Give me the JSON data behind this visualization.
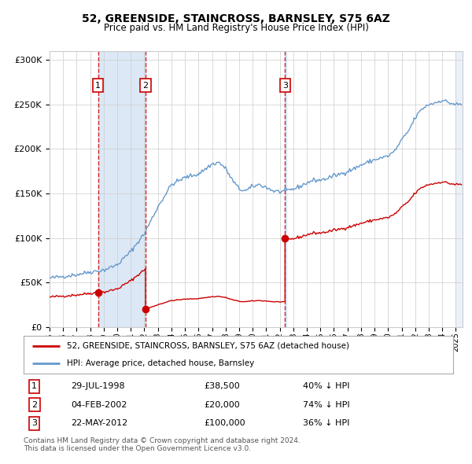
{
  "title": "52, GREENSIDE, STAINCROSS, BARNSLEY, S75 6AZ",
  "subtitle": "Price paid vs. HM Land Registry's House Price Index (HPI)",
  "transactions": [
    {
      "num": 1,
      "date": "1998-07-29",
      "price": 38500,
      "x_year": 1998.58
    },
    {
      "num": 2,
      "date": "2002-02-04",
      "price": 20000,
      "x_year": 2002.09
    },
    {
      "num": 3,
      "date": "2012-05-22",
      "price": 100000,
      "x_year": 2012.39
    }
  ],
  "legend_entries": [
    {
      "label": "52, GREENSIDE, STAINCROSS, BARNSLEY, S75 6AZ (detached house)",
      "color": "#cc0000"
    },
    {
      "label": "HPI: Average price, detached house, Barnsley",
      "color": "#6699cc"
    }
  ],
  "table_rows": [
    {
      "num": 1,
      "date": "29-JUL-1998",
      "price": "£38,500",
      "note": "40% ↓ HPI"
    },
    {
      "num": 2,
      "date": "04-FEB-2002",
      "price": "£20,000",
      "note": "74% ↓ HPI"
    },
    {
      "num": 3,
      "date": "22-MAY-2012",
      "price": "£100,000",
      "note": "36% ↓ HPI"
    }
  ],
  "footnote1": "Contains HM Land Registry data © Crown copyright and database right 2024.",
  "footnote2": "This data is licensed under the Open Government Licence v3.0.",
  "ylim": [
    0,
    310000
  ],
  "xlim_start": 1995.0,
  "xlim_end": 2025.5,
  "hpi_color": "#6699cc",
  "price_color": "#cc0000",
  "plot_bg": "#ffffff",
  "grid_color": "#cccccc",
  "shade_color": "#dce8f5",
  "dashed_color": "#cc0000",
  "hpi_anchors": [
    [
      1995.0,
      55000
    ],
    [
      1996.0,
      57000
    ],
    [
      1997.0,
      59000
    ],
    [
      1998.0,
      62000
    ],
    [
      1999.0,
      64000
    ],
    [
      2000.0,
      70000
    ],
    [
      2001.0,
      85000
    ],
    [
      2002.0,
      105000
    ],
    [
      2003.0,
      135000
    ],
    [
      2004.0,
      160000
    ],
    [
      2005.0,
      168000
    ],
    [
      2006.0,
      172000
    ],
    [
      2007.0,
      183000
    ],
    [
      2007.5,
      185000
    ],
    [
      2008.0,
      178000
    ],
    [
      2008.5,
      165000
    ],
    [
      2009.0,
      155000
    ],
    [
      2009.5,
      153000
    ],
    [
      2010.0,
      158000
    ],
    [
      2010.5,
      160000
    ],
    [
      2011.0,
      157000
    ],
    [
      2011.5,
      153000
    ],
    [
      2012.0,
      152000
    ],
    [
      2012.5,
      153000
    ],
    [
      2013.0,
      155000
    ],
    [
      2013.5,
      158000
    ],
    [
      2014.0,
      162000
    ],
    [
      2014.5,
      165000
    ],
    [
      2015.0,
      165000
    ],
    [
      2015.5,
      167000
    ],
    [
      2016.0,
      170000
    ],
    [
      2016.5,
      172000
    ],
    [
      2017.0,
      175000
    ],
    [
      2017.5,
      178000
    ],
    [
      2018.0,
      182000
    ],
    [
      2018.5,
      185000
    ],
    [
      2019.0,
      188000
    ],
    [
      2019.5,
      190000
    ],
    [
      2020.0,
      192000
    ],
    [
      2020.5,
      198000
    ],
    [
      2021.0,
      210000
    ],
    [
      2021.5,
      220000
    ],
    [
      2022.0,
      235000
    ],
    [
      2022.5,
      245000
    ],
    [
      2023.0,
      250000
    ],
    [
      2023.5,
      252000
    ],
    [
      2024.0,
      255000
    ],
    [
      2024.5,
      252000
    ],
    [
      2025.0,
      250000
    ]
  ]
}
